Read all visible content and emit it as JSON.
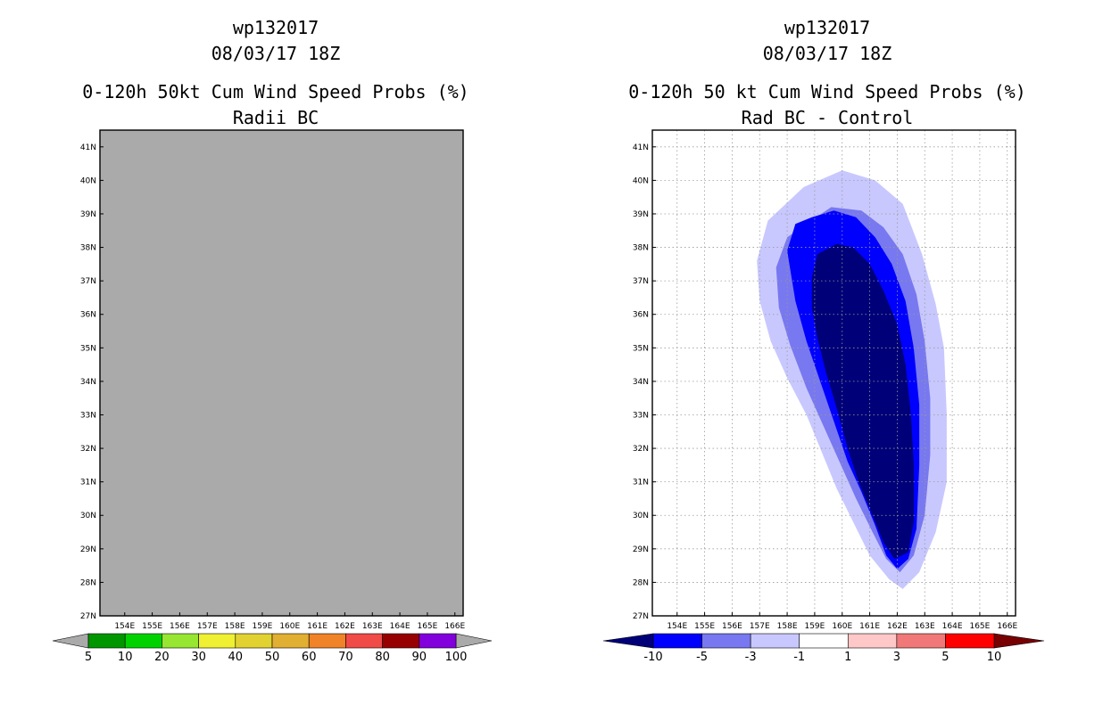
{
  "chart_data": [
    {
      "type": "heatmap",
      "title_lines": [
        "wp132017",
        "08/03/17 18Z",
        "0-120h 50kt Cum Wind Speed Probs (%)",
        "Radii BC"
      ],
      "x_ticks": [
        "154E",
        "155E",
        "156E",
        "157E",
        "158E",
        "159E",
        "160E",
        "161E",
        "162E",
        "163E",
        "164E",
        "165E",
        "166E"
      ],
      "y_ticks": [
        "27N",
        "28N",
        "29N",
        "30N",
        "31N",
        "32N",
        "33N",
        "34N",
        "35N",
        "36N",
        "37N",
        "38N",
        "39N",
        "40N",
        "41N"
      ],
      "xlim": [
        153.1,
        166.3
      ],
      "ylim": [
        27,
        41.5
      ],
      "grid": false,
      "field": "no data (uniform gray)",
      "colorbar": {
        "labels": [
          "5",
          "10",
          "20",
          "30",
          "40",
          "50",
          "60",
          "70",
          "80",
          "90",
          "100"
        ],
        "colors": [
          "#009600",
          "#00d200",
          "#96e632",
          "#f0f032",
          "#e1d232",
          "#e1af32",
          "#f08228",
          "#f04b46",
          "#960000",
          "#8200dc"
        ],
        "end_colors": [
          "#aaaaaa",
          "#aaaaaa"
        ]
      }
    },
    {
      "type": "heatmap",
      "title_lines": [
        "wp132017",
        "08/03/17 18Z",
        "0-120h 50 kt Cum Wind Speed Probs (%)",
        "Rad BC - Control"
      ],
      "x_ticks": [
        "154E",
        "155E",
        "156E",
        "157E",
        "158E",
        "159E",
        "160E",
        "161E",
        "162E",
        "163E",
        "164E",
        "165E",
        "166E"
      ],
      "y_ticks": [
        "27N",
        "28N",
        "29N",
        "30N",
        "31N",
        "32N",
        "33N",
        "34N",
        "35N",
        "36N",
        "37N",
        "38N",
        "39N",
        "40N",
        "41N"
      ],
      "xlim": [
        153.1,
        166.3
      ],
      "ylim": [
        27,
        41.5
      ],
      "grid": true,
      "field": "negative difference lobe oriented NNW-SSE, centre near 161E 33N",
      "contours": [
        {
          "level": "-1 to -3",
          "color": "#c8c8ff",
          "points": [
            [
              158.6,
              39.8
            ],
            [
              160.0,
              40.3
            ],
            [
              161.2,
              40.0
            ],
            [
              162.2,
              39.3
            ],
            [
              162.9,
              37.8
            ],
            [
              163.4,
              36.3
            ],
            [
              163.7,
              35.0
            ],
            [
              163.8,
              33.0
            ],
            [
              163.8,
              31.0
            ],
            [
              163.4,
              29.5
            ],
            [
              162.8,
              28.3
            ],
            [
              162.2,
              27.8
            ],
            [
              161.7,
              28.1
            ],
            [
              161.0,
              28.8
            ],
            [
              160.4,
              29.8
            ],
            [
              159.8,
              30.8
            ],
            [
              159.3,
              31.8
            ],
            [
              158.7,
              33.0
            ],
            [
              158.0,
              34.1
            ],
            [
              157.4,
              35.2
            ],
            [
              157.0,
              36.4
            ],
            [
              156.9,
              37.6
            ],
            [
              157.3,
              38.8
            ]
          ]
        },
        {
          "level": "-3 to -5",
          "color": "#7878f0",
          "points": [
            [
              158.7,
              38.7
            ],
            [
              159.6,
              39.2
            ],
            [
              160.7,
              39.1
            ],
            [
              161.5,
              38.6
            ],
            [
              162.2,
              37.8
            ],
            [
              162.7,
              36.6
            ],
            [
              163.0,
              35.2
            ],
            [
              163.2,
              33.5
            ],
            [
              163.2,
              31.8
            ],
            [
              163.0,
              30.0
            ],
            [
              162.6,
              28.8
            ],
            [
              162.1,
              28.3
            ],
            [
              161.6,
              28.7
            ],
            [
              161.1,
              29.5
            ],
            [
              160.5,
              30.5
            ],
            [
              159.9,
              31.6
            ],
            [
              159.3,
              32.7
            ],
            [
              158.7,
              33.8
            ],
            [
              158.1,
              35.1
            ],
            [
              157.7,
              36.2
            ],
            [
              157.6,
              37.4
            ],
            [
              158.0,
              38.3
            ]
          ]
        },
        {
          "level": "-5 to -10",
          "color": "#0000ff",
          "points": [
            [
              158.9,
              38.9
            ],
            [
              159.7,
              39.1
            ],
            [
              160.5,
              38.9
            ],
            [
              161.2,
              38.3
            ],
            [
              161.8,
              37.5
            ],
            [
              162.3,
              36.4
            ],
            [
              162.6,
              35.0
            ],
            [
              162.8,
              33.3
            ],
            [
              162.8,
              31.5
            ],
            [
              162.7,
              29.6
            ],
            [
              162.4,
              28.7
            ],
            [
              162.0,
              28.4
            ],
            [
              161.6,
              28.8
            ],
            [
              161.2,
              29.7
            ],
            [
              160.7,
              30.7
            ],
            [
              160.2,
              31.6
            ],
            [
              159.7,
              32.8
            ],
            [
              159.2,
              34.0
            ],
            [
              158.7,
              35.2
            ],
            [
              158.3,
              36.4
            ],
            [
              158.0,
              37.9
            ],
            [
              158.3,
              38.7
            ]
          ]
        },
        {
          "level": "< -10",
          "color": "#000078",
          "points": [
            [
              159.1,
              37.8
            ],
            [
              159.8,
              38.1
            ],
            [
              160.4,
              38.0
            ],
            [
              161.0,
              37.5
            ],
            [
              161.5,
              36.7
            ],
            [
              162.0,
              35.7
            ],
            [
              162.3,
              34.5
            ],
            [
              162.5,
              33.0
            ],
            [
              162.6,
              31.5
            ],
            [
              162.6,
              29.8
            ],
            [
              162.4,
              28.9
            ],
            [
              161.9,
              28.7
            ],
            [
              161.5,
              29.2
            ],
            [
              161.1,
              30.0
            ],
            [
              160.6,
              31.0
            ],
            [
              160.2,
              32.0
            ],
            [
              159.8,
              33.2
            ],
            [
              159.4,
              34.3
            ],
            [
              159.1,
              35.3
            ],
            [
              158.9,
              36.2
            ],
            [
              158.9,
              37.1
            ]
          ]
        }
      ],
      "colorbar": {
        "labels": [
          "-10",
          "-5",
          "-3",
          "-1",
          "1",
          "3",
          "5",
          "10"
        ],
        "colors": [
          "#0000ff",
          "#7878f0",
          "#c8c8ff",
          "#ffffff",
          "#ffc8c8",
          "#f07878",
          "#ff0000"
        ],
        "end_colors": [
          "#000078",
          "#780000"
        ]
      }
    }
  ]
}
